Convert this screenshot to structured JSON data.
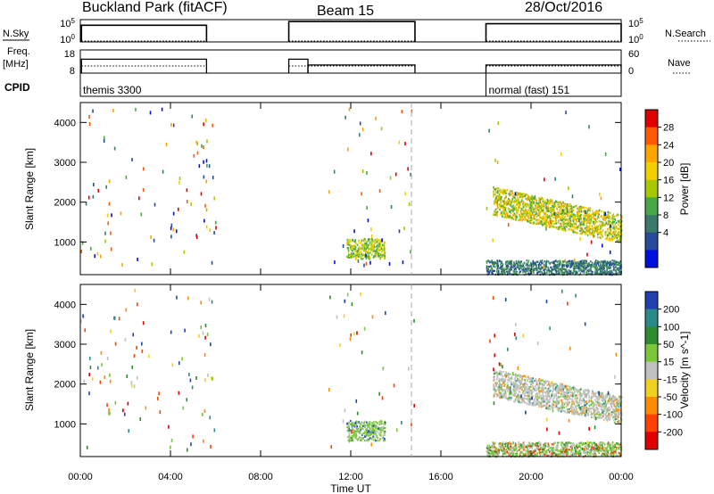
{
  "header": {
    "station": "Buckland Park (fitACF)",
    "beam": "Beam 15",
    "date": "28/Oct/2016"
  },
  "info_panels": {
    "nsky_label": "N.Sky",
    "nsky_ticks": [
      "10^5",
      "10^0"
    ],
    "nsearch_label": "N.Search",
    "nsearch_ticks": [
      "10^5",
      "10^0"
    ],
    "freq_label": "Freq.",
    "freq_unit": "[MHz]",
    "freq_ticks": [
      "18",
      "8"
    ],
    "nave_label": "Nave",
    "nave_ticks": [
      "60",
      "0"
    ],
    "cpid_label": "CPID",
    "cpid_segments": [
      {
        "start_h": 0.0,
        "end_h": 5.6,
        "label": "themis 3300"
      },
      {
        "start_h": 18.0,
        "end_h": 24.0,
        "label": "normal (fast) 151"
      }
    ],
    "nsky_segments": [
      {
        "start_h": 0.05,
        "end_h": 5.6,
        "level": 0.78
      },
      {
        "start_h": 9.25,
        "end_h": 14.85,
        "level": 0.95
      },
      {
        "start_h": 18.0,
        "end_h": 24.0,
        "level": 0.85
      }
    ],
    "freq_segments": [
      {
        "start_h": 0.05,
        "end_h": 5.6,
        "freq": 14.0
      },
      {
        "start_h": 9.25,
        "end_h": 10.1,
        "freq": 14.0
      },
      {
        "start_h": 10.1,
        "end_h": 14.85,
        "freq": 11.5
      },
      {
        "start_h": 18.0,
        "end_h": 24.0,
        "freq": 11.5
      }
    ]
  },
  "chart_data": [
    {
      "type": "heatmap",
      "name": "power",
      "ylabel": "Slant Range [km]",
      "xlim_hours": [
        0,
        24
      ],
      "ylim_km": [
        180,
        4500
      ],
      "yticks": [
        "1000",
        "2000",
        "3000",
        "4000"
      ],
      "colorbar_label": "Power [dB]",
      "colorbar_ticks": [
        "28",
        "24",
        "20",
        "16",
        "12",
        "8",
        "4"
      ],
      "colorbar_colors": [
        "#e00000",
        "#ff5a00",
        "#ffa500",
        "#f2d000",
        "#a8c800",
        "#48a848",
        "#3a7a6a",
        "#284a9a",
        "#0010e0"
      ],
      "marker_line_h": 14.8,
      "features": [
        {
          "start_h": 18.0,
          "end_h": 24.0,
          "range_lo": 200,
          "range_hi": 560,
          "value": "mixed low power"
        },
        {
          "start_h": 18.3,
          "end_h": 24.0,
          "range_lo": 1000,
          "range_hi": 2400,
          "value": "medium power, peak ~20 dB"
        },
        {
          "start_h": 11.8,
          "end_h": 13.5,
          "range_lo": 600,
          "range_hi": 1100,
          "value": "medium/high power"
        }
      ]
    },
    {
      "type": "heatmap",
      "name": "velocity",
      "ylabel": "Slant Range [km]",
      "xlabel": "Time UT",
      "xticks": [
        "00:00",
        "04:00",
        "08:00",
        "12:00",
        "16:00",
        "20:00",
        "00:00"
      ],
      "xlim_hours": [
        0,
        24
      ],
      "ylim_km": [
        180,
        4500
      ],
      "yticks": [
        "1000",
        "2000",
        "3000",
        "4000"
      ],
      "colorbar_label": "Velocity [m s^-1]",
      "colorbar_ticks": [
        "200",
        "100",
        "50",
        "15",
        "-15",
        "-50",
        "-100",
        "-200"
      ],
      "colorbar_colors": [
        "#2040b0",
        "#2a8a8a",
        "#2e8b2e",
        "#7ac83a",
        "#c0c0c0",
        "#f0d020",
        "#ff8c00",
        "#ff4000",
        "#e00000"
      ],
      "marker_line_h": 14.8,
      "features": [
        {
          "start_h": 18.0,
          "end_h": 24.0,
          "range_lo": 200,
          "range_hi": 560,
          "value": "low velocity, green/grey"
        },
        {
          "start_h": 18.3,
          "end_h": 24.0,
          "range_lo": 1000,
          "range_hi": 2400,
          "value": "near-zero velocity, grey"
        },
        {
          "start_h": 11.8,
          "end_h": 13.5,
          "range_lo": 600,
          "range_hi": 1100,
          "value": "low velocity, green"
        }
      ]
    }
  ]
}
